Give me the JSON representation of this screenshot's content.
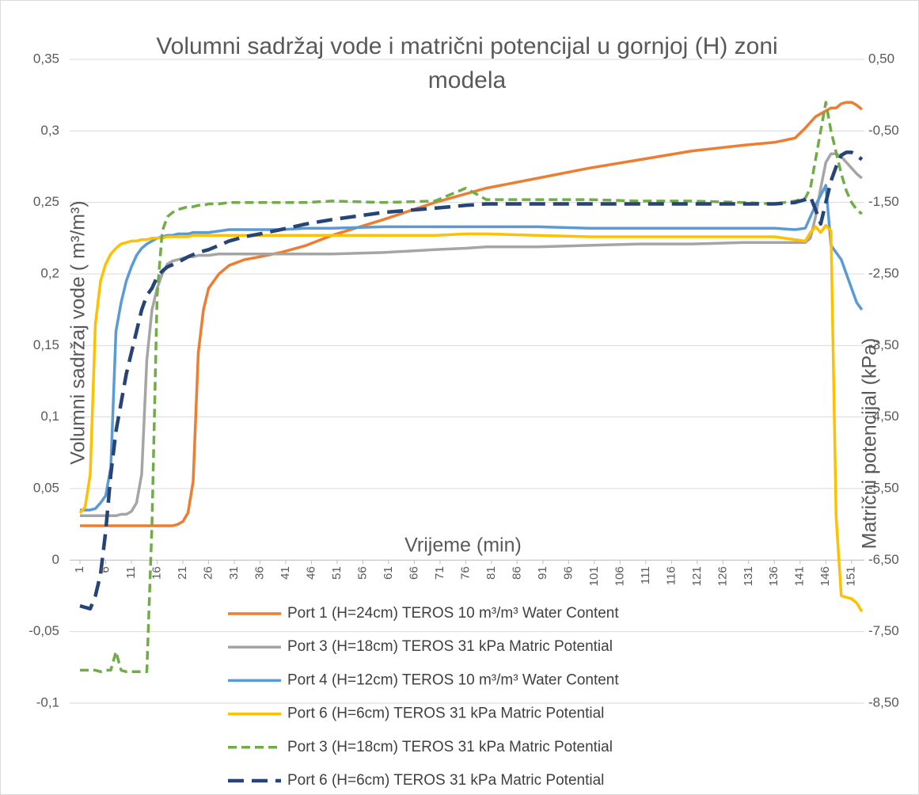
{
  "chart_data": {
    "type": "line",
    "title": [
      "Volumni sadržaj vode i matrični potencijal u gornjoj (H) zoni",
      "modela"
    ],
    "x_label": "Vrijeme (min)",
    "y_label": "Volumni sadržaj vode ( m³/m³)",
    "y2_label": "Matrični potencijal (kPa)",
    "grid": true,
    "legend": "bottom",
    "xlim": [
      -1,
      153.5
    ],
    "xticks": [
      1,
      6,
      11,
      16,
      21,
      26,
      31,
      36,
      41,
      46,
      51,
      56,
      61,
      66,
      71,
      76,
      81,
      86,
      91,
      96,
      101,
      106,
      111,
      116,
      121,
      126,
      131,
      136,
      141,
      146,
      151
    ],
    "ylim": [
      -0.1,
      0.35
    ],
    "yticks": [
      {
        "value": -0.1,
        "label": "-0,1"
      },
      {
        "value": -0.05,
        "label": "-0,05"
      },
      0,
      {
        "value": 0.05,
        "label": "0,05"
      },
      {
        "value": 0.1,
        "label": "0,1"
      },
      {
        "value": 0.15,
        "label": "0,15"
      },
      {
        "value": 0.2,
        "label": "0,2"
      },
      {
        "value": 0.25,
        "label": "0,25"
      },
      {
        "value": 0.3,
        "label": "0,3"
      },
      {
        "value": 0.35,
        "label": "0,35"
      }
    ],
    "y2lim": [
      -8.5,
      0.5
    ],
    "y2ticks": [
      {
        "value": -8.5,
        "label": "-8,50"
      },
      {
        "value": -7.5,
        "label": "-7,50"
      },
      {
        "value": -6.5,
        "label": "-6,50"
      },
      {
        "value": -5.5,
        "label": "-5,50"
      },
      {
        "value": -4.5,
        "label": "-4,50"
      },
      {
        "value": -3.5,
        "label": "-3,50"
      },
      {
        "value": -2.5,
        "label": "-2,50"
      },
      {
        "value": -1.5,
        "label": "-1,50"
      },
      {
        "value": -0.5,
        "label": "-0,50"
      },
      {
        "value": 0.5,
        "label": "0,50"
      }
    ],
    "x": [
      1,
      2,
      3,
      4,
      5,
      6,
      7,
      8,
      9,
      10,
      11,
      12,
      13,
      14,
      15,
      16,
      17,
      18,
      19,
      20,
      21,
      22,
      23,
      24,
      25,
      26,
      28,
      30,
      33,
      36,
      40,
      45,
      50,
      60,
      70,
      76,
      80,
      90,
      100,
      110,
      120,
      130,
      136,
      140,
      142,
      143,
      144,
      145,
      146,
      147,
      148,
      149,
      150,
      151,
      152,
      153
    ],
    "series": [
      {
        "name": "Port 1 (H=24cm) TEROS 10  m³/m³ Water Content",
        "color": "#ed7d31",
        "line_style": "solid",
        "values": [
          0.024,
          0.024,
          0.024,
          0.024,
          0.024,
          0.024,
          0.024,
          0.024,
          0.024,
          0.024,
          0.024,
          0.024,
          0.024,
          0.024,
          0.024,
          0.024,
          0.024,
          0.024,
          0.024,
          0.025,
          0.027,
          0.033,
          0.055,
          0.145,
          0.175,
          0.19,
          0.2,
          0.206,
          0.21,
          0.212,
          0.215,
          0.22,
          0.227,
          0.238,
          0.25,
          0.256,
          0.26,
          0.267,
          0.274,
          0.28,
          0.286,
          0.29,
          0.292,
          0.295,
          0.302,
          0.306,
          0.31,
          0.312,
          0.314,
          0.316,
          0.316,
          0.319,
          0.32,
          0.32,
          0.318,
          0.315
        ]
      },
      {
        "name": "Port 3 (H=18cm) TEROS 31  kPa Matric Potential",
        "color": "#a5a5a5",
        "line_style": "solid",
        "values": [
          0.031,
          0.031,
          0.031,
          0.031,
          0.031,
          0.031,
          0.031,
          0.031,
          0.032,
          0.032,
          0.034,
          0.04,
          0.06,
          0.14,
          0.175,
          0.19,
          0.2,
          0.207,
          0.209,
          0.21,
          0.211,
          0.212,
          0.212,
          0.213,
          0.213,
          0.213,
          0.214,
          0.214,
          0.214,
          0.214,
          0.214,
          0.214,
          0.214,
          0.215,
          0.217,
          0.218,
          0.219,
          0.219,
          0.22,
          0.221,
          0.221,
          0.222,
          0.222,
          0.222,
          0.222,
          0.225,
          0.24,
          0.26,
          0.278,
          0.284,
          0.284,
          0.282,
          0.278,
          0.274,
          0.27,
          0.267
        ]
      },
      {
        "name": "Port 4 (H=12cm) TEROS 10  m³/m³ Water Content",
        "color": "#5b9bd5",
        "line_style": "solid",
        "values": [
          0.035,
          0.035,
          0.035,
          0.036,
          0.04,
          0.045,
          0.065,
          0.16,
          0.18,
          0.195,
          0.205,
          0.213,
          0.218,
          0.221,
          0.223,
          0.225,
          0.226,
          0.227,
          0.227,
          0.228,
          0.228,
          0.228,
          0.229,
          0.229,
          0.229,
          0.229,
          0.23,
          0.231,
          0.231,
          0.231,
          0.231,
          0.232,
          0.232,
          0.233,
          0.233,
          0.233,
          0.233,
          0.233,
          0.232,
          0.232,
          0.232,
          0.232,
          0.232,
          0.231,
          0.232,
          0.24,
          0.248,
          0.255,
          0.262,
          0.22,
          0.215,
          0.21,
          0.2,
          0.19,
          0.18,
          0.175
        ]
      },
      {
        "name": "Port 6 (H=6cm) TEROS 31  kPa Matric Potential",
        "color": "#ffc000",
        "line_style": "solid",
        "values": [
          0.033,
          0.037,
          0.06,
          0.165,
          0.195,
          0.207,
          0.214,
          0.218,
          0.221,
          0.222,
          0.223,
          0.223,
          0.224,
          0.224,
          0.225,
          0.225,
          0.225,
          0.226,
          0.226,
          0.226,
          0.226,
          0.226,
          0.227,
          0.227,
          0.227,
          0.227,
          0.227,
          0.227,
          0.227,
          0.227,
          0.227,
          0.227,
          0.227,
          0.227,
          0.227,
          0.228,
          0.228,
          0.227,
          0.226,
          0.226,
          0.226,
          0.226,
          0.226,
          0.224,
          0.223,
          0.229,
          0.233,
          0.229,
          0.234,
          0.23,
          0.03,
          -0.025,
          -0.026,
          -0.027,
          -0.03,
          -0.036
        ]
      },
      {
        "name": "Port 3 (H=18cm) TEROS 31  kPa Matric Potential",
        "color": "#70ad47",
        "line_style": "dashed",
        "axis": "y2",
        "values": [
          -8.04,
          -8.04,
          -8.04,
          -8.04,
          -8.06,
          -8.04,
          -8.04,
          -7.78,
          -8.04,
          -8.06,
          -8.06,
          -8.06,
          -8.06,
          -8.06,
          -6.0,
          -2.8,
          -1.9,
          -1.7,
          -1.64,
          -1.6,
          -1.58,
          -1.56,
          -1.56,
          -1.54,
          -1.54,
          -1.52,
          -1.52,
          -1.5,
          -1.5,
          -1.5,
          -1.5,
          -1.5,
          -1.48,
          -1.5,
          -1.48,
          -1.3,
          -1.46,
          -1.46,
          -1.46,
          -1.48,
          -1.48,
          -1.5,
          -1.52,
          -1.48,
          -1.44,
          -1.3,
          -0.9,
          -0.5,
          -0.1,
          -0.5,
          -0.8,
          -1.1,
          -1.34,
          -1.5,
          -1.6,
          -1.66
        ]
      },
      {
        "name": "Port 6 (H=6cm) TEROS 31  kPa Matric Potential",
        "color": "#264478",
        "line_style": "long-dash",
        "axis": "y2",
        "values": [
          -7.14,
          -7.16,
          -7.18,
          -7.0,
          -6.7,
          -6.1,
          -5.3,
          -4.7,
          -4.3,
          -3.9,
          -3.6,
          -3.3,
          -3.0,
          -2.8,
          -2.7,
          -2.54,
          -2.46,
          -2.4,
          -2.37,
          -2.34,
          -2.3,
          -2.26,
          -2.23,
          -2.2,
          -2.18,
          -2.16,
          -2.1,
          -2.04,
          -1.98,
          -1.94,
          -1.88,
          -1.8,
          -1.74,
          -1.64,
          -1.58,
          -1.54,
          -1.52,
          -1.52,
          -1.52,
          -1.52,
          -1.52,
          -1.52,
          -1.52,
          -1.5,
          -1.46,
          -1.42,
          -1.6,
          -1.8,
          -1.5,
          -1.2,
          -1.0,
          -0.84,
          -0.8,
          -0.8,
          -0.84,
          -0.9
        ]
      }
    ]
  }
}
